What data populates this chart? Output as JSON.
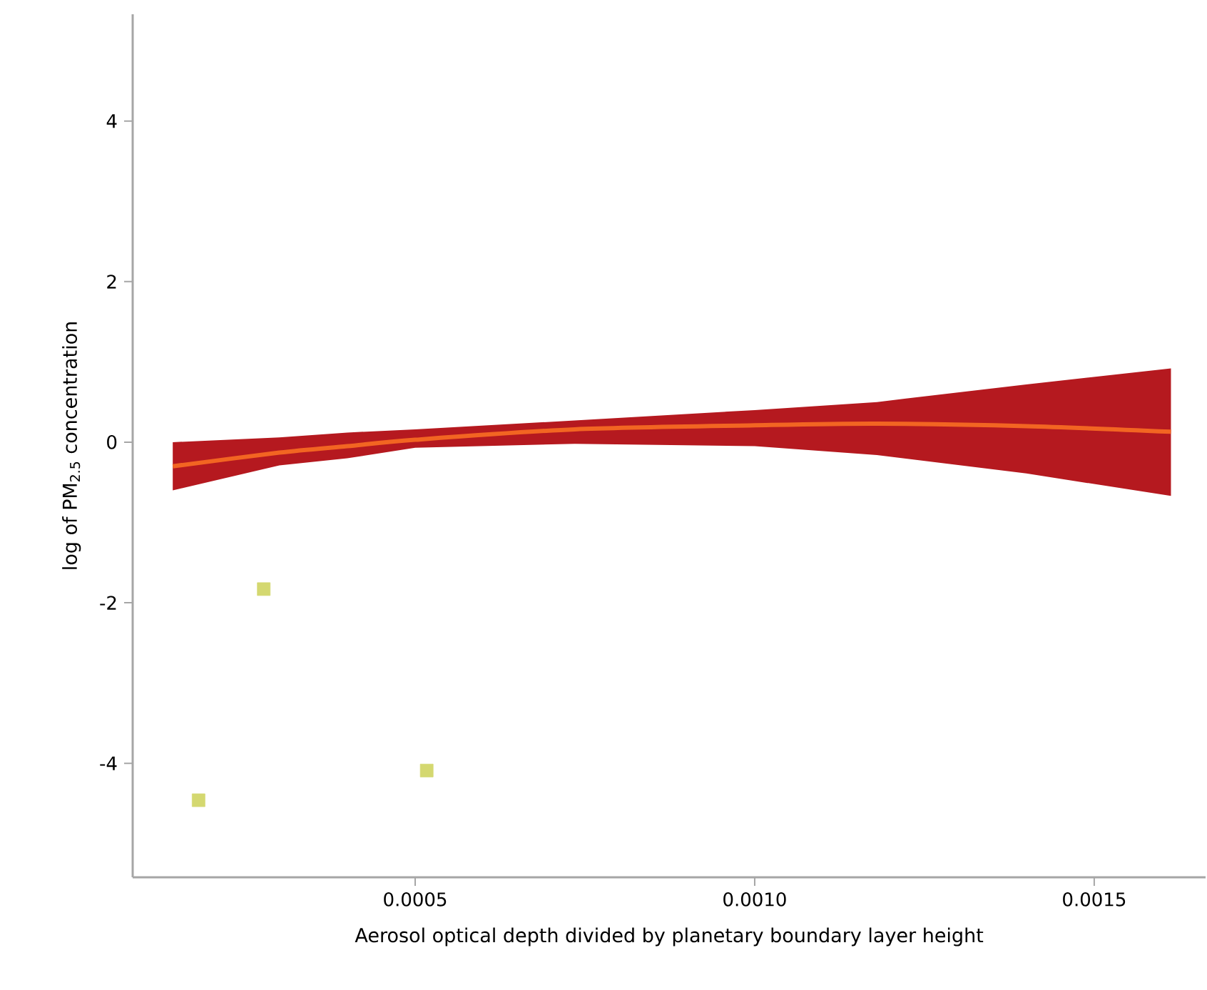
{
  "chart_data": {
    "type": "scatter",
    "xlabel": "Aerosol optical depth divided by planetary boundary layer height",
    "ylabel": "log of PM$_{2.5}$ concentration",
    "xlim": [
      8.4e-05,
      0.001664
    ],
    "ylim": [
      -5.42,
      5.33
    ],
    "xticks": [
      {
        "value": 0.0005,
        "label": "0.0005"
      },
      {
        "value": 0.001,
        "label": "0.0010"
      },
      {
        "value": 0.0015,
        "label": "0.0015"
      }
    ],
    "yticks": [
      -4,
      -2,
      0,
      2,
      4
    ],
    "series": [
      {
        "type": "line",
        "color": "#f26522",
        "marker": "none",
        "x": [
          0.000143,
          0.0003,
          0.0004,
          0.0005,
          0.000735,
          0.001,
          0.00118,
          0.0014,
          0.001613
        ],
        "values": [
          -0.3,
          -0.13,
          -0.05,
          0.03,
          0.16,
          0.21,
          0.23,
          0.2,
          0.13
        ],
        "lower": [
          -0.6,
          -0.29,
          -0.2,
          -0.07,
          -0.02,
          -0.05,
          -0.16,
          -0.39,
          -0.67
        ],
        "upper": [
          0.0,
          0.06,
          0.12,
          0.16,
          0.27,
          0.4,
          0.5,
          0.72,
          0.92
        ]
      },
      {
        "color": "#d4d870",
        "marker": "square",
        "x": [
          0.000181,
          0.000277,
          0.000517
        ],
        "values": [
          -4.46,
          -1.83,
          -4.09
        ]
      }
    ]
  }
}
